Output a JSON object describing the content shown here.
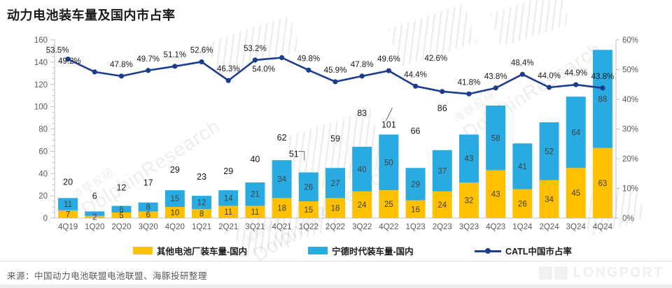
{
  "title": "动力电池装车量及国内市占率",
  "source_note": "来源：中国动力电池联盟电池联盟、海豚投研整理",
  "logo_text": "LONGPORT",
  "watermark": {
    "cn": "海豚投研",
    "en": "DolphinResearch"
  },
  "colors": {
    "others_bar": "#FFC000",
    "catl_bar": "#29ABE2",
    "share_line": "#1C3C8C",
    "axis": "#BFBFBF",
    "axis_text": "#595959",
    "bar_label_text": "#404040",
    "data_label_text": "#1a1a1a"
  },
  "legend": [
    {
      "type": "bar",
      "color": "#FFC000",
      "label": "其他电池厂装车量-国内"
    },
    {
      "type": "bar",
      "color": "#29ABE2",
      "label": "宁德时代装车量-国内"
    },
    {
      "type": "line",
      "color": "#1C3C8C",
      "label": "CATL中国市占率"
    }
  ],
  "chart_data": {
    "type": "combo: stacked-bar + line",
    "categories": [
      "4Q19",
      "1Q20",
      "2Q20",
      "3Q20",
      "4Q20",
      "1Q21",
      "2Q21",
      "3Q21",
      "4Q21",
      "1Q22",
      "2Q22",
      "3Q22",
      "4Q22",
      "1Q23",
      "2Q23",
      "3Q23",
      "4Q23",
      "1Q24",
      "2Q24",
      "3Q24",
      "4Q24"
    ],
    "series": [
      {
        "name": "其他电池厂装车量-国内",
        "type": "bar",
        "stack": "installs",
        "color": "#FFC000",
        "values": [
          7,
          2,
          5,
          6,
          10,
          8,
          11,
          11,
          18,
          15,
          18,
          24,
          25,
          16,
          24,
          32,
          43,
          26,
          34,
          45,
          63
        ],
        "labels": [
          "7",
          "2",
          "5",
          "6",
          "10",
          "8",
          "11",
          "11",
          "18",
          "15",
          "18",
          "24",
          "25",
          "16",
          "24",
          "32",
          "43",
          "26",
          "34",
          "45",
          "63"
        ]
      },
      {
        "name": "宁德时代装车量-国内",
        "type": "bar",
        "stack": "installs",
        "color": "#29ABE2",
        "values": [
          11,
          4,
          6,
          8,
          15,
          12,
          14,
          21,
          34,
          26,
          27,
          40,
          50,
          29,
          37,
          43,
          58,
          41,
          52,
          64,
          88
        ],
        "labels": [
          "11",
          "",
          "6",
          "8",
          "15",
          "12",
          "14",
          "21",
          "34",
          "26",
          "27",
          "40",
          "50",
          "29",
          "37",
          "43",
          "58",
          "41",
          "52",
          "64",
          "88"
        ]
      },
      {
        "name": "CATL中国市占率",
        "type": "line",
        "color": "#1C3C8C",
        "axis": "right",
        "label_suffix": "%",
        "values": [
          53.5,
          49.2,
          47.8,
          49.7,
          51.1,
          52.6,
          46.3,
          53.2,
          54.0,
          49.8,
          45.9,
          47.8,
          49.6,
          44.4,
          42.6,
          41.8,
          43.8,
          48.4,
          44.0,
          44.9,
          43.8
        ]
      }
    ],
    "total_labels": [
      "20",
      "6",
      "12",
      "17",
      "29",
      "23",
      "29",
      "40",
      "62",
      "51",
      "59",
      "83",
      "101",
      "66",
      "86",
      "",
      "",
      "",
      "",
      "",
      ""
    ],
    "left_axis": {
      "min": 0,
      "max": 160,
      "step": 20
    },
    "right_axis": {
      "min": 0,
      "max": 60,
      "step": 10,
      "suffix": "%"
    },
    "grid": false,
    "legend_position": "bottom"
  }
}
